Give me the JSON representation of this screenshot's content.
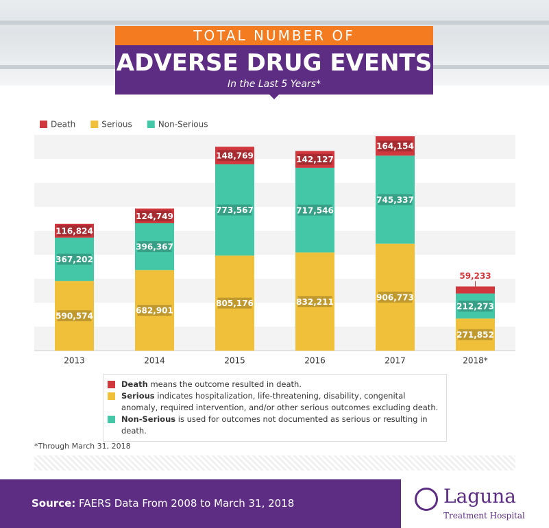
{
  "header": {
    "kicker": "TOTAL NUMBER OF",
    "title": "ADVERSE DRUG EVENTS",
    "subtitle": "In the Last 5 Years*"
  },
  "chart_data": {
    "type": "stacked-bar",
    "legend": "top-left",
    "categories": [
      "2013",
      "2014",
      "2015",
      "2016",
      "2017",
      "2018*"
    ],
    "series": [
      {
        "name": "Death",
        "color": "#d1383e",
        "values": [
          116824,
          124749,
          148769,
          142127,
          164154,
          59233
        ],
        "value_labels": [
          "116,824",
          "124,749",
          "148,769",
          "142,127",
          "164,154",
          "59,233"
        ]
      },
      {
        "name": "Serious",
        "color": "#f1c03a",
        "values": [
          590574,
          682901,
          805176,
          832211,
          906773,
          271852
        ],
        "value_labels": [
          "590,574",
          "682,901",
          "805,176",
          "832,211",
          "906,773",
          "271,852"
        ]
      },
      {
        "name": "Non-Serious",
        "color": "#44c7a7",
        "values": [
          367202,
          396367,
          773567,
          717546,
          745337,
          212273
        ],
        "value_labels": [
          "367,202",
          "396,367",
          "773,567",
          "717,546",
          "745,337",
          "212,273"
        ]
      }
    ]
  },
  "definitions": [
    {
      "term": "Death",
      "text": "means the outcome resulted in death."
    },
    {
      "term": "Serious",
      "text": "indicates hospitalization, life-threatening, disability, congenital anomaly, required intervention, and/or other serious outcomes excluding death."
    },
    {
      "term": "Non-Serious",
      "text": "is used for outcomes not documented as serious or resulting in death."
    }
  ],
  "footnote": "*Through March 31, 2018",
  "footer": {
    "source_label": "Source:",
    "source_text": "FAERS Data From 2008 to March 31, 2018"
  },
  "logo": {
    "name": "Laguna",
    "subtitle": "Treatment Hospital"
  }
}
